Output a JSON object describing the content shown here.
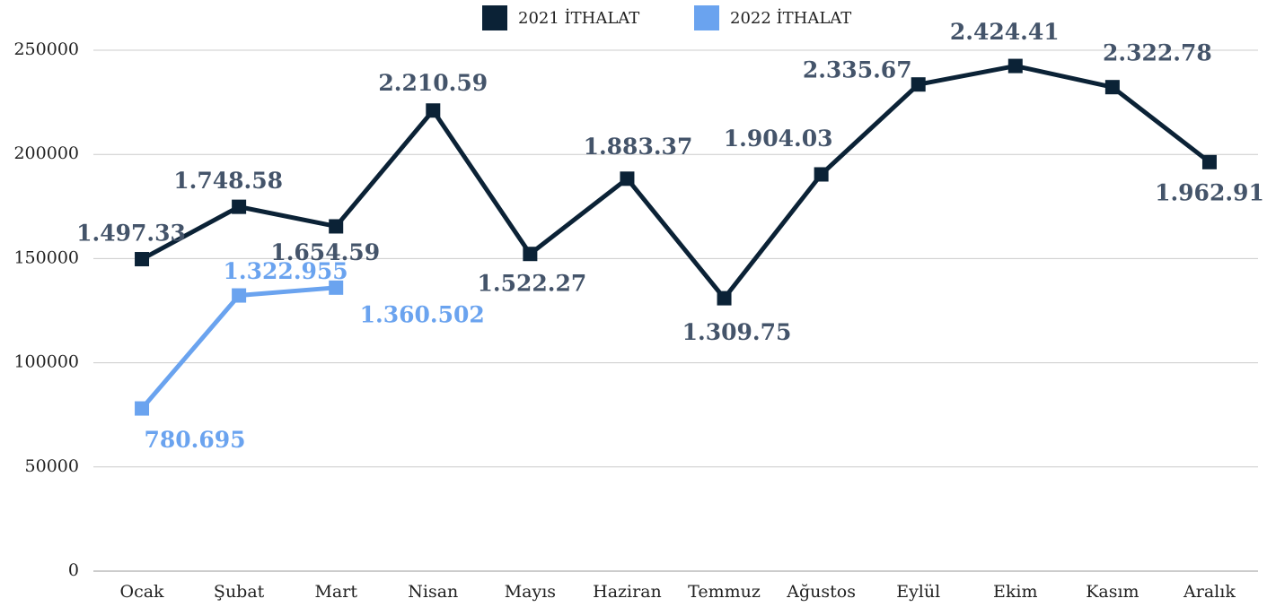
{
  "chart_data": {
    "type": "line",
    "categories": [
      "Ocak",
      "Şubat",
      "Mart",
      "Nisan",
      "Mayıs",
      "Haziran",
      "Temmuz",
      "Ağustos",
      "Eylül",
      "Ekim",
      "Kasım",
      "Aralık"
    ],
    "series": [
      {
        "name": "2021 İTHALAT",
        "color": "#0b2236",
        "label_color": "#44546a",
        "values": [
          149733,
          174858,
          165459,
          221059,
          152227,
          188337,
          130975,
          190403,
          233567,
          242441,
          232278,
          196291
        ],
        "value_labels": [
          "1.497.33",
          "1.748.58",
          "1.654.59",
          "2.210.59",
          "1.522.27",
          "1.883.37",
          "1.309.75",
          "1.904.03",
          "2.335.67",
          "2.424.41",
          "2.322.78",
          "1.962.91"
        ]
      },
      {
        "name": "2022 İTHALAT",
        "color": "#6aa3ef",
        "label_color": "#6aa3ef",
        "values": [
          78069.5,
          132295.5,
          136050.2,
          null,
          null,
          null,
          null,
          null,
          null,
          null,
          null,
          null
        ],
        "value_labels": [
          "780.695",
          "1.322.955",
          "1.360.502",
          null,
          null,
          null,
          null,
          null,
          null,
          null,
          null,
          null
        ]
      }
    ],
    "ylim": [
      0,
      250000
    ],
    "yticks": [
      0,
      50000,
      100000,
      150000,
      200000,
      250000
    ],
    "grid": true,
    "legend": "top"
  }
}
